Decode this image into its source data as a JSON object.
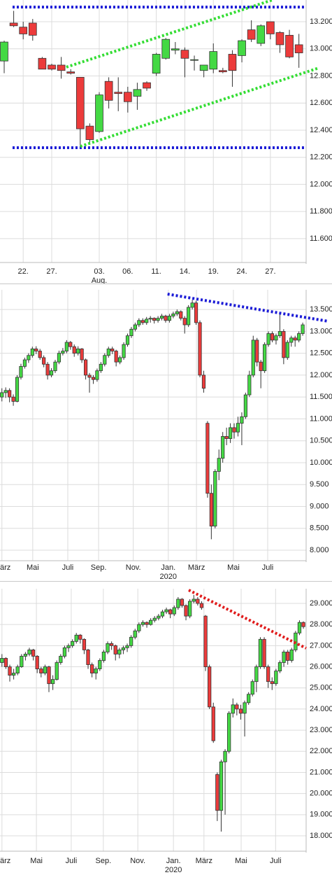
{
  "chart_data": [
    {
      "type": "candlestick",
      "up_color": "#44d944",
      "down_color": "#ec3b3b",
      "grid": true,
      "xlim": [
        -0.44,
        31.76
      ],
      "ylim": [
        11424,
        13360
      ],
      "xticks": [
        {
          "value": 2,
          "label": "22."
        },
        {
          "value": 5,
          "label": "27."
        },
        {
          "value": 10,
          "label": "03."
        },
        {
          "value": 13,
          "label": "06."
        },
        {
          "value": 16,
          "label": "11."
        },
        {
          "value": 19,
          "label": "14."
        },
        {
          "value": 22,
          "label": "19."
        },
        {
          "value": 25,
          "label": "24."
        },
        {
          "value": 28,
          "label": "27."
        }
      ],
      "xticks_secondary": [
        {
          "value": 10,
          "label": "Aug."
        }
      ],
      "yticks": [
        {
          "value": 11600,
          "label": "11.600"
        },
        {
          "value": 11800,
          "label": "11.800"
        },
        {
          "value": 12000,
          "label": "12.000"
        },
        {
          "value": 12200,
          "label": "12.200"
        },
        {
          "value": 12400,
          "label": "12.400"
        },
        {
          "value": 12600,
          "label": "12.600"
        },
        {
          "value": 12800,
          "label": "12.800"
        },
        {
          "value": 13000,
          "label": "13.000"
        },
        {
          "value": 13200,
          "label": "13.200"
        }
      ],
      "open": [
        12910,
        13190,
        13160,
        13190,
        12930,
        12880,
        12880,
        12830,
        12790,
        12430,
        12390,
        12760,
        12680,
        12680,
        12650,
        12750,
        12820,
        12930,
        12990,
        12990,
        12920,
        12840,
        12850,
        12840,
        12960,
        12950,
        13140,
        13040,
        13200,
        13120,
        13100,
        13030
      ],
      "high": [
        13060,
        13280,
        13200,
        13220,
        12940,
        12890,
        12940,
        12850,
        12790,
        12450,
        12680,
        12790,
        12790,
        12720,
        12750,
        12760,
        12970,
        13080,
        13050,
        13010,
        12950,
        12880,
        13040,
        12860,
        12990,
        13070,
        13210,
        13180,
        13200,
        13130,
        13140,
        13110
      ],
      "low": [
        12820,
        13160,
        13070,
        13060,
        12850,
        12840,
        12780,
        12810,
        12270,
        12300,
        12380,
        12560,
        12540,
        12530,
        12550,
        12690,
        12800,
        12920,
        12960,
        12790,
        12840,
        12790,
        12820,
        12820,
        12720,
        12900,
        13050,
        13020,
        13070,
        12970,
        12930,
        12860
      ],
      "close": [
        13050,
        13170,
        13110,
        13100,
        12850,
        12850,
        12840,
        12820,
        12410,
        12330,
        12660,
        12620,
        12670,
        12610,
        12700,
        12710,
        12960,
        13070,
        13000,
        12930,
        12920,
        12880,
        12980,
        12830,
        12840,
        13060,
        13070,
        13170,
        13110,
        13030,
        12940,
        12970
      ],
      "trend_lines": [
        {
          "color": "#1a1ad6",
          "x": [
            0.88,
            31.76
          ],
          "y": [
            13308,
            13308
          ]
        },
        {
          "color": "#1a1ad6",
          "x": [
            0.88,
            31.76
          ],
          "y": [
            12271,
            12271
          ]
        },
        {
          "color": "#33dd33",
          "x": [
            6.54,
            28.2
          ],
          "y": [
            12865,
            13360
          ]
        },
        {
          "color": "#33dd33",
          "x": [
            8.0,
            33.0
          ],
          "y": [
            12280,
            12857
          ]
        }
      ]
    },
    {
      "type": "candlestick",
      "up_color": "#44d944",
      "down_color": "#ec3b3b",
      "grid": true,
      "xlim": [
        -0.5,
        79.9
      ],
      "ylim": [
        7760,
        13950
      ],
      "xticks": [
        {
          "value": 0,
          "label": "ärz"
        },
        {
          "value": 8.1,
          "label": "Mai"
        },
        {
          "value": 17.3,
          "label": "Juli"
        },
        {
          "value": 25.4,
          "label": "Sep."
        },
        {
          "value": 34.5,
          "label": "Nov."
        },
        {
          "value": 43.7,
          "label": "Jan."
        },
        {
          "value": 51.1,
          "label": "März"
        },
        {
          "value": 60.8,
          "label": "Mai"
        },
        {
          "value": 69.8,
          "label": "Juli"
        }
      ],
      "xticks_secondary": [
        {
          "value": 43.7,
          "label": "2020"
        }
      ],
      "yticks": [
        {
          "value": 8000,
          "label": "8.000"
        },
        {
          "value": 8500,
          "label": "8.500"
        },
        {
          "value": 9000,
          "label": "9.000"
        },
        {
          "value": 9500,
          "label": "9.500"
        },
        {
          "value": 10000,
          "label": "10.000"
        },
        {
          "value": 10500,
          "label": "10.500"
        },
        {
          "value": 11000,
          "label": "11.000"
        },
        {
          "value": 11500,
          "label": "11.500"
        },
        {
          "value": 12000,
          "label": "12.000"
        },
        {
          "value": 12500,
          "label": "12.500"
        },
        {
          "value": 13000,
          "label": "13.000"
        },
        {
          "value": 13500,
          "label": "13.500"
        }
      ],
      "open": [
        11500,
        11600,
        11650,
        11500,
        11400,
        11950,
        12200,
        12350,
        12450,
        12600,
        12550,
        12400,
        12250,
        12000,
        12100,
        12300,
        12500,
        12550,
        12750,
        12650,
        12500,
        12600,
        12350,
        12000,
        11950,
        11900,
        12100,
        12250,
        12450,
        12600,
        12550,
        12300,
        12400,
        12700,
        12900,
        13050,
        13150,
        13250,
        13200,
        13280,
        13300,
        13250,
        13300,
        13350,
        13250,
        13350,
        13400,
        13450,
        13300,
        13150,
        13550,
        13650,
        13200,
        12000,
        10900,
        9300,
        8550,
        9800,
        10100,
        10600,
        10550,
        10800,
        10700,
        10900,
        11050,
        11550,
        12000,
        12800,
        12300,
        12100,
        12700,
        12950,
        12800,
        12900,
        13000,
        12400,
        12750,
        12850,
        12800,
        12950
      ],
      "high": [
        11700,
        11720,
        11700,
        11560,
        12000,
        12260,
        12400,
        12500,
        12650,
        12660,
        12600,
        12450,
        12300,
        12160,
        12350,
        12560,
        12620,
        12800,
        12780,
        12700,
        12660,
        12620,
        12380,
        12050,
        12000,
        12150,
        12300,
        12500,
        12650,
        12650,
        12580,
        12450,
        12750,
        12950,
        13100,
        13200,
        13300,
        13300,
        13330,
        13350,
        13320,
        13350,
        13400,
        13380,
        13400,
        13450,
        13500,
        13480,
        13350,
        13600,
        13720,
        13700,
        13250,
        12100,
        10950,
        9500,
        9850,
        10300,
        10700,
        10800,
        10900,
        10900,
        11050,
        11150,
        11600,
        12100,
        12900,
        12850,
        12350,
        12750,
        13000,
        13000,
        12950,
        13400,
        13050,
        12800,
        12900,
        12900,
        13000,
        13200
      ],
      "low": [
        11400,
        11480,
        11380,
        11300,
        11380,
        11900,
        12150,
        12280,
        12400,
        12480,
        12350,
        12180,
        11900,
        11950,
        12050,
        12250,
        12450,
        12500,
        12580,
        12420,
        12450,
        12280,
        11900,
        11600,
        11800,
        11850,
        12050,
        12200,
        12400,
        12480,
        12200,
        12250,
        12350,
        12650,
        12850,
        13000,
        13100,
        13150,
        13150,
        13200,
        13180,
        13200,
        13250,
        13200,
        13200,
        13300,
        13350,
        13250,
        12950,
        13100,
        13500,
        13150,
        11950,
        11600,
        9200,
        8250,
        8500,
        9600,
        10000,
        10400,
        10450,
        10550,
        10600,
        10400,
        11000,
        11500,
        11950,
        12200,
        11700,
        12050,
        12650,
        12750,
        12700,
        12850,
        12250,
        12350,
        12650,
        12650,
        12750,
        12900
      ],
      "close": [
        11600,
        11650,
        11500,
        11400,
        11950,
        12200,
        12350,
        12450,
        12600,
        12550,
        12400,
        12250,
        12000,
        12100,
        12300,
        12500,
        12550,
        12750,
        12650,
        12500,
        12600,
        12350,
        12000,
        11950,
        11900,
        12100,
        12250,
        12450,
        12600,
        12550,
        12300,
        12400,
        12700,
        12900,
        13050,
        13150,
        13250,
        13200,
        13280,
        13300,
        13250,
        13300,
        13350,
        13250,
        13350,
        13400,
        13450,
        13300,
        13150,
        13550,
        13650,
        13200,
        12000,
        11700,
        9300,
        8550,
        9800,
        10100,
        10600,
        10550,
        10800,
        10700,
        10900,
        11050,
        11550,
        12000,
        12800,
        12300,
        12100,
        12700,
        12950,
        12800,
        12900,
        13000,
        12400,
        12750,
        12850,
        12800,
        12950,
        13150
      ],
      "trend_lines": [
        {
          "color": "#1a1ad6",
          "x": [
            43.5,
            85.7
          ],
          "y": [
            13852,
            13230
          ]
        }
      ]
    },
    {
      "type": "candlestick",
      "up_color": "#44d944",
      "down_color": "#ec3b3b",
      "grid": true,
      "xlim": [
        -0.5,
        77.7
      ],
      "ylim": [
        17271,
        29696
      ],
      "xticks": [
        {
          "value": 0,
          "label": "ärz"
        },
        {
          "value": 8.8,
          "label": "Mai"
        },
        {
          "value": 17.7,
          "label": "Juli"
        },
        {
          "value": 25.9,
          "label": "Sep."
        },
        {
          "value": 34.7,
          "label": "Nov."
        },
        {
          "value": 43.8,
          "label": "Jan."
        },
        {
          "value": 51.6,
          "label": "März"
        },
        {
          "value": 61.1,
          "label": "Mai"
        },
        {
          "value": 69.9,
          "label": "Juli"
        }
      ],
      "xticks_secondary": [
        {
          "value": 43.8,
          "label": "2020"
        }
      ],
      "yticks": [
        {
          "value": 18000,
          "label": "18.000"
        },
        {
          "value": 19000,
          "label": "19.000"
        },
        {
          "value": 20000,
          "label": "20.000"
        },
        {
          "value": 21000,
          "label": "21.000"
        },
        {
          "value": 22000,
          "label": "22.000"
        },
        {
          "value": 23000,
          "label": "23.000"
        },
        {
          "value": 24000,
          "label": "24.000"
        },
        {
          "value": 25000,
          "label": "25.000"
        },
        {
          "value": 26000,
          "label": "26.000"
        },
        {
          "value": 27000,
          "label": "27.000"
        },
        {
          "value": 28000,
          "label": "28.000"
        },
        {
          "value": 29000,
          "label": "29.000"
        }
      ],
      "open": [
        26200,
        26400,
        26000,
        25600,
        25700,
        26000,
        26500,
        26600,
        26800,
        26500,
        25900,
        25700,
        26000,
        25200,
        25400,
        26200,
        26500,
        26900,
        27000,
        27200,
        27500,
        27300,
        26800,
        26100,
        25700,
        25900,
        26300,
        26700,
        27100,
        27000,
        26600,
        26800,
        26900,
        27000,
        27400,
        27700,
        28000,
        28100,
        28000,
        28200,
        28300,
        28400,
        28600,
        28700,
        28500,
        28800,
        29200,
        28900,
        28400,
        29100,
        29200,
        29000,
        28400,
        26000,
        24100,
        20900,
        19200,
        21500,
        22000,
        23800,
        24200,
        24000,
        23800,
        24300,
        24700,
        25300,
        26000,
        27300,
        26000,
        25300,
        25200,
        25800,
        26200,
        26700,
        26300,
        26800,
        27600,
        28100
      ],
      "high": [
        26600,
        26450,
        26100,
        25900,
        26100,
        26600,
        26700,
        26900,
        26850,
        26550,
        26000,
        26100,
        26050,
        25600,
        26300,
        26600,
        27000,
        27100,
        27300,
        27600,
        27550,
        27350,
        26850,
        26200,
        26000,
        26400,
        26800,
        27200,
        27200,
        27050,
        26900,
        27000,
        27100,
        27500,
        27800,
        28100,
        28200,
        28150,
        28300,
        28400,
        28500,
        28700,
        28800,
        28750,
        28900,
        29300,
        29250,
        28950,
        29200,
        29400,
        29300,
        29100,
        28450,
        26100,
        24300,
        21000,
        21600,
        22100,
        23900,
        24500,
        24300,
        24200,
        24400,
        24800,
        25400,
        26100,
        27400,
        27400,
        26100,
        25500,
        25900,
        26300,
        26800,
        26800,
        26900,
        27700,
        28200,
        28150
      ],
      "low": [
        26000,
        25900,
        25300,
        25400,
        25600,
        25950,
        26300,
        26500,
        26300,
        25700,
        25500,
        25600,
        24800,
        24900,
        25350,
        26100,
        26400,
        26700,
        26900,
        27100,
        27100,
        26600,
        25900,
        25500,
        25400,
        25800,
        26200,
        26600,
        26800,
        26300,
        26400,
        26600,
        26700,
        26900,
        27300,
        27600,
        27900,
        27850,
        27950,
        28100,
        28200,
        28300,
        28500,
        28300,
        28400,
        28700,
        28800,
        28200,
        28300,
        29000,
        28900,
        28700,
        25800,
        24000,
        22400,
        18700,
        18200,
        19000,
        21900,
        23600,
        23700,
        23500,
        22700,
        24200,
        24600,
        24800,
        25900,
        25900,
        25000,
        24900,
        25100,
        25700,
        26000,
        26100,
        26200,
        26700,
        27500,
        27800
      ],
      "close": [
        26400,
        26000,
        25600,
        25700,
        26000,
        26500,
        26600,
        26800,
        26500,
        25900,
        25700,
        26000,
        25200,
        25400,
        26200,
        26500,
        26900,
        27000,
        27200,
        27500,
        27300,
        26800,
        26100,
        25700,
        25900,
        26300,
        26700,
        27100,
        27000,
        26600,
        26800,
        26900,
        27000,
        27400,
        27700,
        28000,
        28100,
        28000,
        28200,
        28300,
        28400,
        28600,
        28700,
        28500,
        28800,
        29200,
        28900,
        28400,
        29100,
        29200,
        29000,
        28800,
        26000,
        24100,
        22500,
        19200,
        21500,
        22000,
        23800,
        24200,
        24000,
        23800,
        24300,
        24700,
        25300,
        26000,
        27300,
        26000,
        25300,
        25200,
        25800,
        26200,
        26700,
        26300,
        26800,
        27600,
        28100,
        27900
      ],
      "trend_lines": [
        {
          "color": "#e01b1b",
          "x": [
            47.7,
            77.7
          ],
          "y": [
            29630,
            26880
          ]
        }
      ]
    }
  ]
}
